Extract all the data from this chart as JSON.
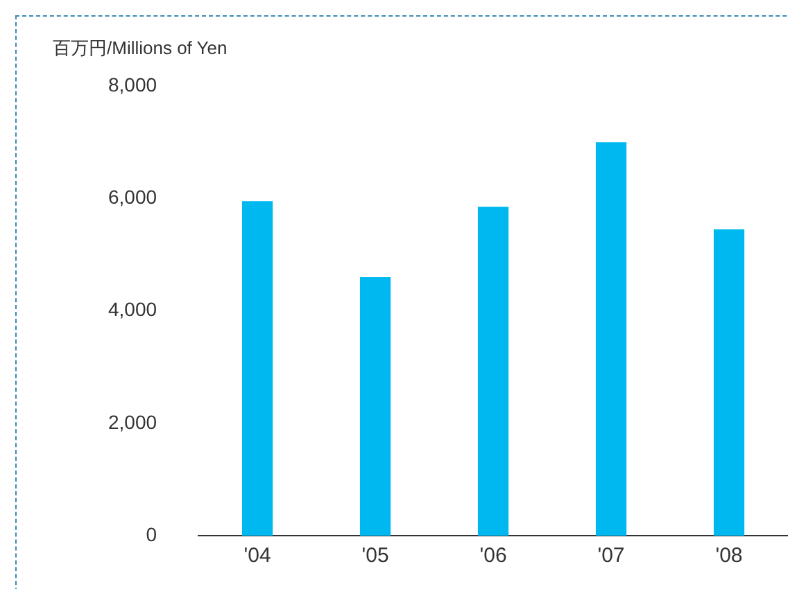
{
  "chart_data": {
    "type": "bar",
    "ylabel": "百万円/Millions of Yen",
    "categories": [
      "'04",
      "'05",
      "'06",
      "'07",
      "'08"
    ],
    "values": [
      5950,
      4600,
      5850,
      7000,
      5450
    ],
    "color": "#00b8f0",
    "ylim": [
      0,
      8000
    ],
    "yticks": [
      0,
      {
        "value": 2000,
        "label": "2,000"
      },
      {
        "value": 4000,
        "label": "4,000"
      },
      {
        "value": 6000,
        "label": "6,000"
      },
      {
        "value": 8000,
        "label": "8,000"
      }
    ],
    "grid": false,
    "legend": false
  }
}
